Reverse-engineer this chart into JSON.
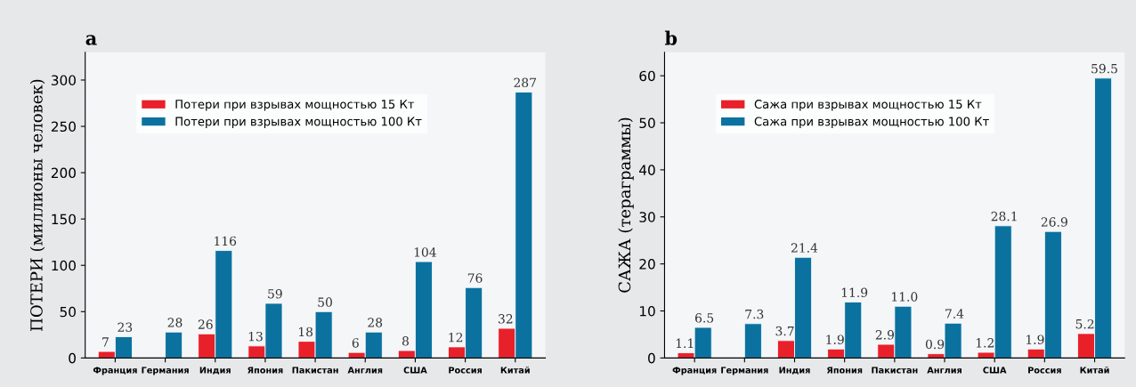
{
  "chart_data": [
    {
      "type": "bar",
      "title": "a",
      "ylabel": "ПОТЕРИ (миллионы человек)",
      "categories": [
        "Франция",
        "Германия",
        "Индия",
        "Япония",
        "Пакистан",
        "Англия",
        "США",
        "Россия",
        "Китай"
      ],
      "series": [
        {
          "name": "Потери при взрывах мощностью 15 Кт",
          "color": "#e8202a",
          "values": [
            7,
            null,
            26,
            13,
            18,
            6,
            8,
            12,
            32
          ]
        },
        {
          "name": "Потери при взрывах мощностью 100 Кт",
          "color": "#0b72a0",
          "values": [
            23,
            28,
            116,
            59,
            50,
            28,
            104,
            76,
            287
          ]
        }
      ],
      "ylim": [
        0,
        330
      ],
      "yticks": [
        0,
        50,
        100,
        150,
        200,
        250,
        300
      ],
      "data_labels": true,
      "legend": "top left",
      "grid": false
    },
    {
      "type": "bar",
      "title": "b",
      "ylabel": "САЖА (тераграммы)",
      "categories": [
        "Франция",
        "Германия",
        "Индия",
        "Япония",
        "Пакистан",
        "Англия",
        "США",
        "Россия",
        "Китай"
      ],
      "series": [
        {
          "name": "Сажа при взрывах мощностью 15 Кт",
          "color": "#e8202a",
          "values": [
            1.1,
            null,
            3.7,
            1.9,
            2.9,
            0.9,
            1.2,
            1.9,
            5.2
          ],
          "value_labels": [
            "1.1",
            null,
            "3.7",
            "1.9",
            "2.9",
            "0.9",
            "1.2",
            "1.9",
            "5.2"
          ]
        },
        {
          "name": "Сажа при взрывах мощностью 100 Кт",
          "color": "#0b72a0",
          "values": [
            6.5,
            7.3,
            21.4,
            11.9,
            11.0,
            7.4,
            28.1,
            26.9,
            59.5
          ],
          "value_labels": [
            "6.5",
            "7.3",
            "21.4",
            "11.9",
            "11.0",
            "7.4",
            "28.1",
            "26.9",
            "59.5"
          ]
        }
      ],
      "ylim": [
        0,
        65
      ],
      "yticks": [
        0,
        10,
        20,
        30,
        40,
        50,
        60
      ],
      "legend": "top left",
      "grid": false
    }
  ]
}
